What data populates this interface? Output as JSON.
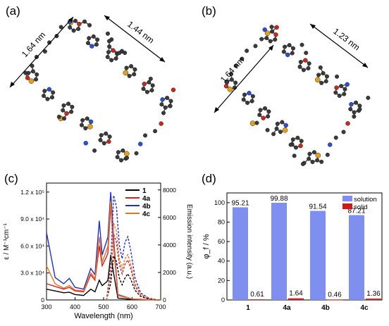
{
  "panel_labels": [
    "(a)",
    "(b)",
    "(c)",
    "(d)"
  ],
  "structure_a": {
    "dim1": "1.64 nm",
    "dim2": "1.44 nm"
  },
  "structure_b": {
    "dim1": "1.64 nm",
    "dim2": "1.23 nm"
  },
  "colors": {
    "carbon": "#3a3a3a",
    "nitrogen": "#2b4fd6",
    "oxygen": "#c8281e",
    "sulfur": "#e0a020",
    "series_1": "#000000",
    "series_4a": "#d62020",
    "series_4b": "#1f2fd0",
    "series_4c": "#f07020",
    "solution_bar": "#7f8ff0",
    "solid_bar": "#d01818"
  },
  "chart_data": [
    {
      "type": "line",
      "xlabel": "Wavelength (nm)",
      "ylabel_left": "ε / M⁻¹cm⁻¹",
      "ylabel_right": "Emission intensity (a.u.)",
      "xlim": [
        300,
        700
      ],
      "ylim_left": [
        0,
        130000
      ],
      "ylim_right": [
        0,
        8500
      ],
      "x_ticks": [
        "300",
        "400",
        "500",
        "600",
        "700"
      ],
      "y_ticks_left": [
        "0",
        "3.0 x 10⁴",
        "6.0 x 10⁴",
        "9.0 x 10⁴",
        "1.2 x 10⁵"
      ],
      "y_ticks_right": [
        "0",
        "2000",
        "4000",
        "6000",
        "8000"
      ],
      "legend": [
        "1",
        "4a",
        "4b",
        "4c"
      ],
      "absorption_series": [
        {
          "name": "1",
          "x": [
            300,
            330,
            360,
            380,
            400,
            430,
            455,
            470,
            485,
            495,
            510,
            515,
            525,
            535,
            550,
            600,
            700
          ],
          "y": [
            12000,
            10000,
            8000,
            8500,
            6000,
            5000,
            12000,
            9000,
            22000,
            16000,
            20000,
            22000,
            50000,
            30000,
            2000,
            500,
            0
          ]
        },
        {
          "name": "4a",
          "x": [
            300,
            330,
            360,
            380,
            400,
            430,
            455,
            470,
            485,
            495,
            510,
            515,
            525,
            535,
            550,
            600,
            700
          ],
          "y": [
            18000,
            15000,
            12000,
            14000,
            10000,
            9000,
            28000,
            22000,
            60000,
            38000,
            48000,
            52000,
            105000,
            60000,
            5000,
            1000,
            0
          ]
        },
        {
          "name": "4b",
          "x": [
            300,
            330,
            360,
            380,
            400,
            430,
            455,
            470,
            485,
            495,
            510,
            515,
            525,
            535,
            550,
            600,
            700
          ],
          "y": [
            75000,
            25000,
            18000,
            24000,
            14000,
            12000,
            35000,
            28000,
            88000,
            50000,
            65000,
            70000,
            120000,
            70000,
            6000,
            1000,
            0
          ]
        },
        {
          "name": "4c",
          "x": [
            300,
            330,
            360,
            380,
            400,
            430,
            455,
            470,
            485,
            495,
            510,
            515,
            525,
            535,
            550,
            600,
            700
          ],
          "y": [
            38000,
            18000,
            13000,
            16000,
            11000,
            10000,
            30000,
            24000,
            70000,
            42000,
            55000,
            60000,
            110000,
            63000,
            5500,
            1000,
            0
          ]
        }
      ],
      "emission_series": [
        {
          "name": "1",
          "x": [
            510,
            525,
            535,
            545,
            555,
            565,
            575,
            585,
            595,
            610,
            630,
            660,
            690
          ],
          "y": [
            0,
            1200,
            3200,
            2800,
            1600,
            1100,
            1600,
            1900,
            1500,
            700,
            250,
            60,
            0
          ]
        },
        {
          "name": "4a",
          "x": [
            510,
            525,
            535,
            545,
            555,
            565,
            575,
            585,
            595,
            610,
            630,
            660,
            690
          ],
          "y": [
            0,
            1800,
            4800,
            4200,
            2600,
            1900,
            2600,
            2900,
            2300,
            1000,
            350,
            80,
            0
          ]
        },
        {
          "name": "4b",
          "x": [
            510,
            525,
            535,
            545,
            555,
            565,
            575,
            585,
            595,
            610,
            630,
            660,
            690
          ],
          "y": [
            0,
            2500,
            7600,
            6800,
            4000,
            3000,
            4200,
            4600,
            3600,
            1600,
            500,
            120,
            0
          ]
        },
        {
          "name": "4c",
          "x": [
            510,
            525,
            535,
            545,
            555,
            565,
            575,
            585,
            595,
            610,
            630,
            660,
            690
          ],
          "y": [
            0,
            2000,
            5600,
            5000,
            3000,
            2300,
            3000,
            3300,
            2600,
            1200,
            400,
            100,
            0
          ]
        }
      ]
    },
    {
      "type": "bar",
      "ylabel": "φ_f / %",
      "ylim": [
        0,
        110
      ],
      "y_ticks": [
        "0",
        "20",
        "40",
        "60",
        "80",
        "100"
      ],
      "categories": [
        "1",
        "4a",
        "4b",
        "4c"
      ],
      "series": [
        {
          "name": "solution",
          "values": [
            95.21,
            99.88,
            91.54,
            87.21
          ]
        },
        {
          "name": "solid",
          "values": [
            0.61,
            1.64,
            0.46,
            1.36
          ]
        }
      ],
      "value_labels_solution": [
        "95.21",
        "99.88",
        "91.54",
        "87.21"
      ],
      "value_labels_solid": [
        "0.61",
        "1.64",
        "0.46",
        "1.36"
      ],
      "legend": [
        "solution",
        "solid"
      ],
      "legend_position": "top-right"
    }
  ]
}
